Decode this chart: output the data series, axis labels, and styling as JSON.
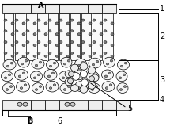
{
  "bg_color": "#ffffff",
  "line_color": "#000000",
  "label_A": "A",
  "label_B": "B",
  "label_1": "1",
  "label_2": "2",
  "label_3": "3",
  "label_4": "4",
  "label_5": "5",
  "label_6": "6",
  "figsize": [
    2.15,
    1.59
  ],
  "dpi": 100
}
